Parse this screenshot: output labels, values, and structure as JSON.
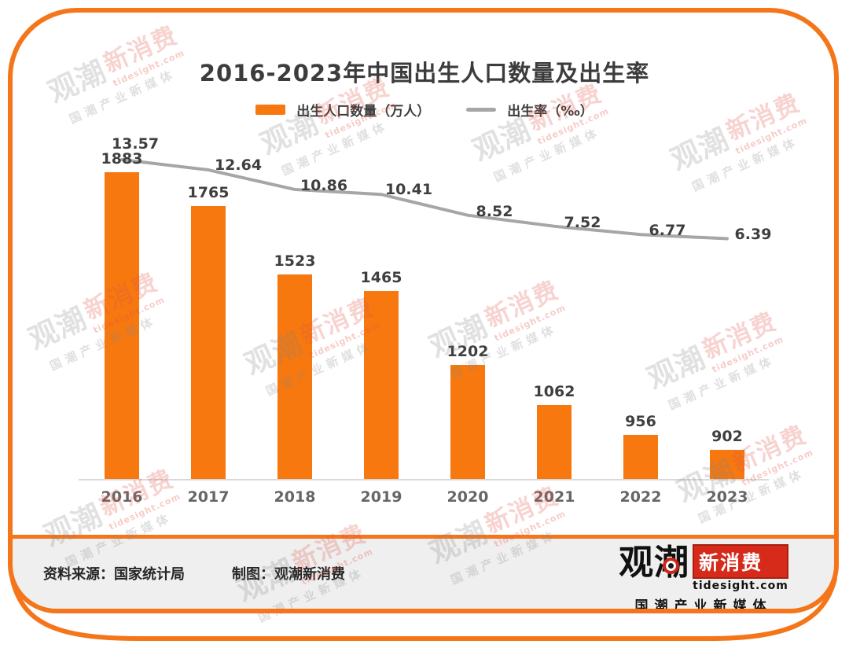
{
  "title": "2016-2023年中国出生人口数量及出生率",
  "legend": {
    "bar_label": "出生人口数量（万人）",
    "line_label": "出生率（‰）"
  },
  "chart_data": {
    "type": "bar+line",
    "title": "2016-2023年中国出生人口数量及出生率",
    "categories": [
      "2016",
      "2017",
      "2018",
      "2019",
      "2020",
      "2021",
      "2022",
      "2023"
    ],
    "series": [
      {
        "name": "出生人口数量（万人）",
        "type": "bar",
        "color": "#F6780F",
        "values": [
          1883,
          1765,
          1523,
          1465,
          1202,
          1062,
          956,
          902
        ]
      },
      {
        "name": "出生率（‰）",
        "type": "line",
        "color": "#A6A6A6",
        "values": [
          13.57,
          12.64,
          10.86,
          10.41,
          8.52,
          7.52,
          6.77,
          6.39
        ]
      }
    ],
    "xlabel": "",
    "ylabel": "",
    "bar_axis_implied_range": [
      800,
      1900
    ],
    "rate_axis_implied_range": [
      6,
      14
    ],
    "grid": false,
    "legend_position": "top",
    "data_labels_shown": true
  },
  "footer": {
    "source": "资料来源：国家统计局",
    "credit": "制图：观潮新消费"
  },
  "logo": {
    "name": "观潮",
    "badge": "新消费",
    "domain": "tidesight.com",
    "tagline": "国潮产业新媒体"
  },
  "watermark": {
    "part1": "观潮",
    "part2": "新消费",
    "domain": "tidesight.com",
    "tagline": "国潮产业新媒体"
  },
  "colors": {
    "bar": "#F6780F",
    "line": "#A6A6A6",
    "frame": "#F5761A",
    "value_label": "#3F3F3F",
    "axis_label": "#666666",
    "footer_bg": "#EFEFEF",
    "badge_red": "#D62B1A"
  }
}
